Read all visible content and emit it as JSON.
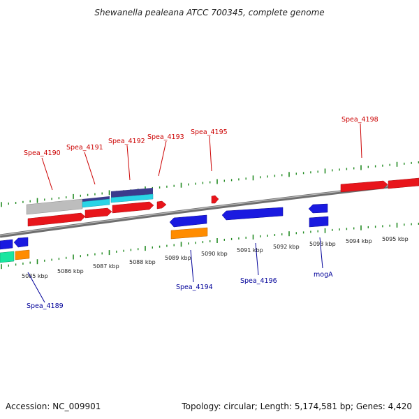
{
  "title": "Shewanella pealeana ATCC 700345, complete genome",
  "footer": {
    "accession": "Accession: NC_009901",
    "summary": "Topology: circular; Length: 5,174,581 bp; Genes: 4,420"
  },
  "colors": {
    "forward_label": "#cc0000",
    "reverse_label": "#000099",
    "cds_forward": "#e8151b",
    "cds_reverse": "#1a1ae0",
    "trna_cds": "#ff8c00",
    "ticks": "#228b22",
    "backbone": "#888888"
  },
  "kbp_ticks": [
    {
      "label": "5085 kbp"
    },
    {
      "label": "5086 kbp"
    },
    {
      "label": "5087 kbp"
    },
    {
      "label": "5088 kbp"
    },
    {
      "label": "5089 kbp"
    },
    {
      "label": "5090 kbp"
    },
    {
      "label": "5091 kbp"
    },
    {
      "label": "5092 kbp"
    },
    {
      "label": "5093 kbp"
    },
    {
      "label": "5094 kbp"
    },
    {
      "label": "5095 kbp"
    }
  ],
  "forward_genes": [
    {
      "label": "Spea_4190"
    },
    {
      "label": "Spea_4191"
    },
    {
      "label": "Spea_4192"
    },
    {
      "label": "Spea_4193"
    },
    {
      "label": "Spea_4195"
    },
    {
      "label": "Spea_4198"
    }
  ],
  "reverse_genes": [
    {
      "label": "Spea_4189"
    },
    {
      "label": "Spea_4194"
    },
    {
      "label": "Spea_4196"
    },
    {
      "label": "mogA"
    }
  ]
}
